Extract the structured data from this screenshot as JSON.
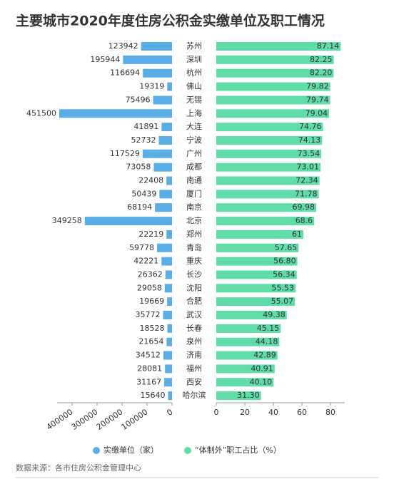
{
  "chart_data": {
    "type": "bar",
    "orientation": "horizontal",
    "title": "主要城市2020年度住房公积金实缴单位及职工情况",
    "categories": [
      "苏州",
      "深圳",
      "杭州",
      "佛山",
      "无锡",
      "上海",
      "大连",
      "宁波",
      "广州",
      "成都",
      "南通",
      "厦门",
      "南京",
      "北京",
      "郑州",
      "青岛",
      "重庆",
      "长沙",
      "沈阳",
      "合肥",
      "武汉",
      "长春",
      "泉州",
      "济南",
      "福州",
      "西安",
      "哈尔滨"
    ],
    "series": [
      {
        "name": "实缴单位（家）",
        "color": "#5aaee6",
        "side": "left",
        "values": [
          123942,
          195944,
          116694,
          19319,
          75496,
          451500,
          41891,
          52732,
          117529,
          73058,
          22408,
          50439,
          68194,
          349258,
          22219,
          59778,
          42221,
          26362,
          29058,
          19669,
          35772,
          18528,
          21654,
          34512,
          28081,
          31167,
          15640
        ],
        "xlim": [
          0,
          460000
        ],
        "xticks": [
          0,
          100000,
          200000,
          300000,
          400000
        ]
      },
      {
        "name": "“体制外”职工占比（%）",
        "color": "#5fdcaa",
        "side": "right",
        "values": [
          87.14,
          82.25,
          82.2,
          79.82,
          79.74,
          79.04,
          74.76,
          74.13,
          73.54,
          73.01,
          72.34,
          71.78,
          69.98,
          68.6,
          61,
          57.65,
          56.8,
          56.34,
          55.53,
          55.07,
          49.38,
          45.15,
          44.18,
          42.89,
          40.91,
          40.1,
          31.3
        ],
        "value_labels": [
          "87.14",
          "82.25",
          "82.20",
          "79.82",
          "79.74",
          "79.04",
          "74.76",
          "74.13",
          "73.54",
          "73.01",
          "72.34",
          "71.78",
          "69.98",
          "68.6",
          "61",
          "57.65",
          "56.80",
          "56.34",
          "55.53",
          "55.07",
          "49.38",
          "45.15",
          "44.18",
          "42.89",
          "40.91",
          "40.10",
          "31.30"
        ],
        "xlim": [
          0,
          90
        ],
        "xticks": [
          0,
          20,
          40,
          60,
          80
        ]
      }
    ],
    "source": "数据来源：各市住房公积金管理中心"
  }
}
